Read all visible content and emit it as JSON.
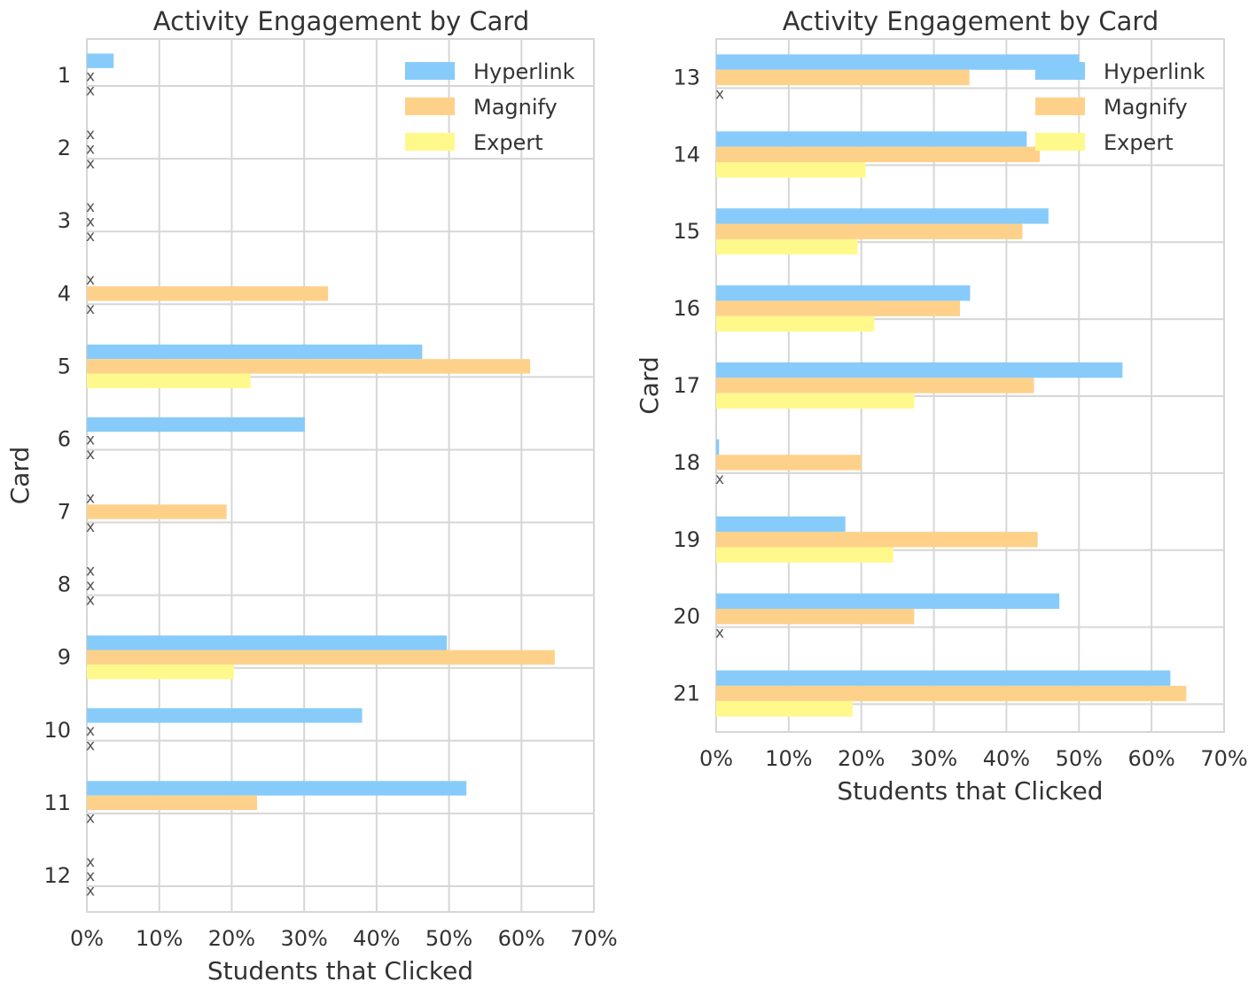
{
  "colors": {
    "hyperlink": "#87cbfa",
    "magnify": "#fed18a",
    "expert": "#fff98c",
    "grid": "#d6d6d6",
    "text": "#333333"
  },
  "chart_data": [
    {
      "type": "bar",
      "orientation": "horizontal",
      "title": "Activity Engagement by Card",
      "xlabel": "Students that Clicked",
      "ylabel": "Card",
      "xlim": [
        0,
        70
      ],
      "xticks": [
        "0%",
        "10%",
        "20%",
        "30%",
        "40%",
        "50%",
        "60%",
        "70%"
      ],
      "grid": true,
      "legend_position": "top-right",
      "zero_marker": "x",
      "categories": [
        "1",
        "2",
        "3",
        "4",
        "5",
        "6",
        "7",
        "8",
        "9",
        "10",
        "11",
        "12"
      ],
      "series": [
        {
          "name": "Hyperlink",
          "color_key": "hyperlink",
          "values": [
            3.7,
            0,
            0,
            0,
            46.3,
            30.1,
            0,
            0,
            49.7,
            38,
            52.4,
            0
          ]
        },
        {
          "name": "Magnify",
          "color_key": "magnify",
          "values": [
            0,
            0,
            0,
            33.3,
            61.2,
            0,
            19.3,
            0,
            64.6,
            0,
            23.5,
            0
          ]
        },
        {
          "name": "Expert",
          "color_key": "expert",
          "values": [
            0,
            0,
            0,
            0,
            22.6,
            0,
            0,
            0,
            20.3,
            0,
            0,
            0
          ]
        }
      ]
    },
    {
      "type": "bar",
      "orientation": "horizontal",
      "title": "Activity Engagement by Card",
      "xlabel": "Students that Clicked",
      "ylabel": "Card",
      "xlim": [
        0,
        70
      ],
      "xticks": [
        "0%",
        "10%",
        "20%",
        "30%",
        "40%",
        "50%",
        "60%",
        "70%"
      ],
      "grid": true,
      "legend_position": "top-right",
      "zero_marker": "x",
      "categories": [
        "13",
        "14",
        "15",
        "16",
        "17",
        "18",
        "19",
        "20",
        "21"
      ],
      "series": [
        {
          "name": "Hyperlink",
          "color_key": "hyperlink",
          "values": [
            50,
            42.8,
            45.8,
            35,
            56,
            0.4,
            17.8,
            47.3,
            62.6
          ]
        },
        {
          "name": "Magnify",
          "color_key": "magnify",
          "values": [
            34.9,
            44.6,
            42.2,
            33.6,
            43.8,
            20,
            44.3,
            27.3,
            64.8
          ]
        },
        {
          "name": "Expert",
          "color_key": "expert",
          "values": [
            0,
            20.6,
            19.5,
            21.8,
            27.3,
            0,
            24.4,
            0,
            18.8
          ]
        }
      ]
    }
  ]
}
